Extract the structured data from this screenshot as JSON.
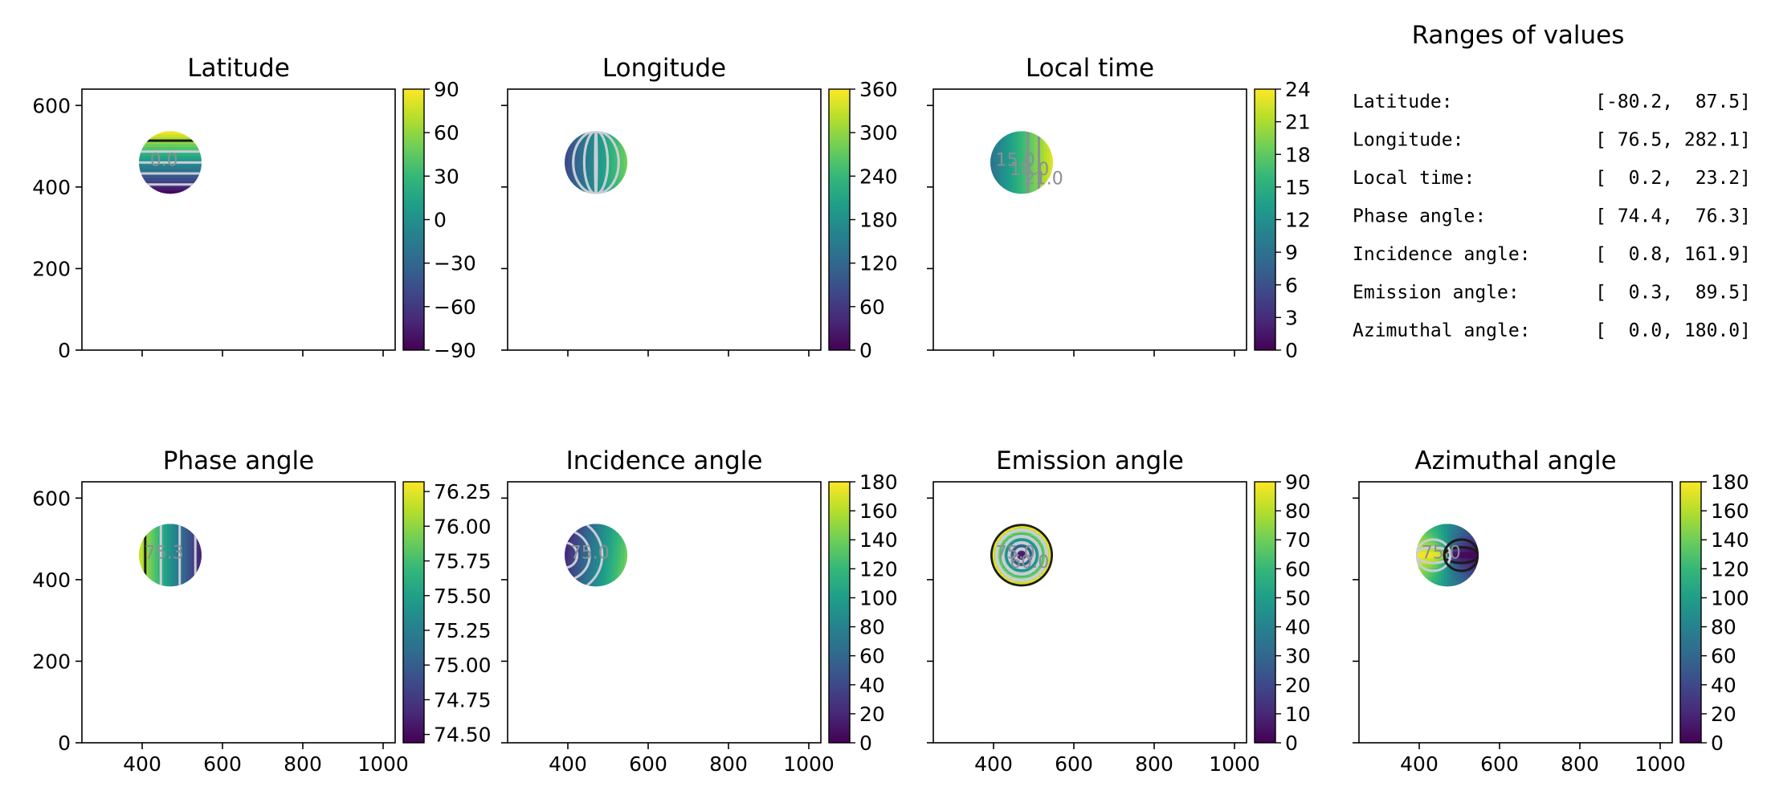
{
  "colormap": {
    "name": "viridis",
    "stops": [
      "#440154",
      "#482878",
      "#3e4989",
      "#31688e",
      "#26828e",
      "#1f9e89",
      "#35b779",
      "#6ece58",
      "#b5de2b",
      "#fde725"
    ]
  },
  "colors": {
    "contour_light": "#c8cdd6",
    "contour_gray": "#8a8f96",
    "contour_dark": "#1b1b1b",
    "axes": "#000000"
  },
  "chart_data": [
    {
      "type": "heatmap",
      "id": "latitude",
      "title": "Latitude",
      "xlim": [
        250,
        1030
      ],
      "ylim": [
        0,
        640
      ],
      "xticks": [
        400,
        600,
        800,
        1000
      ],
      "yticks": [
        0,
        200,
        400,
        600
      ],
      "show_xticklabels": false,
      "show_yticklabels": true,
      "disk": {
        "cx": 470,
        "cy": 460,
        "r": 78
      },
      "field": "latitude",
      "clim": [
        -90,
        90
      ],
      "colorbar_ticks": [
        "90",
        "60",
        "30",
        "0",
        "−30",
        "−60",
        "−90"
      ],
      "colorbar_values": [
        90,
        60,
        30,
        0,
        -30,
        -60,
        -90
      ],
      "contour_labels": [
        "0.0"
      ]
    },
    {
      "type": "heatmap",
      "id": "longitude",
      "title": "Longitude",
      "xlim": [
        250,
        1030
      ],
      "ylim": [
        0,
        640
      ],
      "xticks": [
        400,
        600,
        800,
        1000
      ],
      "yticks": [
        0,
        200,
        400,
        600
      ],
      "show_xticklabels": false,
      "show_yticklabels": false,
      "disk": {
        "cx": 470,
        "cy": 460,
        "r": 78
      },
      "field": "longitude",
      "clim": [
        0,
        360
      ],
      "colorbar_ticks": [
        "360",
        "300",
        "240",
        "180",
        "120",
        "60",
        "0"
      ],
      "colorbar_values": [
        360,
        300,
        240,
        180,
        120,
        60,
        0
      ],
      "contour_labels": []
    },
    {
      "type": "heatmap",
      "id": "local-time",
      "title": "Local time",
      "xlim": [
        250,
        1030
      ],
      "ylim": [
        0,
        640
      ],
      "xticks": [
        400,
        600,
        800,
        1000
      ],
      "yticks": [
        0,
        200,
        400,
        600
      ],
      "show_xticklabels": false,
      "show_yticklabels": false,
      "disk": {
        "cx": 470,
        "cy": 460,
        "r": 78
      },
      "field": "localtime",
      "clim": [
        0,
        24
      ],
      "colorbar_ticks": [
        "24",
        "21",
        "18",
        "15",
        "12",
        "9",
        "6",
        "3",
        "0"
      ],
      "colorbar_values": [
        24,
        21,
        18,
        15,
        12,
        9,
        6,
        3,
        0
      ],
      "contour_labels": [
        "15.0",
        "18.0",
        "21.0"
      ]
    },
    {
      "type": "heatmap",
      "id": "phase-angle",
      "title": "Phase angle",
      "xlim": [
        250,
        1030
      ],
      "ylim": [
        0,
        640
      ],
      "xticks": [
        400,
        600,
        800,
        1000
      ],
      "yticks": [
        0,
        200,
        400,
        600
      ],
      "show_xticklabels": true,
      "show_yticklabels": true,
      "disk": {
        "cx": 470,
        "cy": 460,
        "r": 78
      },
      "field": "phase",
      "clim": [
        74.44,
        76.32
      ],
      "colorbar_ticks": [
        "76.25",
        "76.00",
        "75.75",
        "75.50",
        "75.25",
        "75.00",
        "74.75",
        "74.50"
      ],
      "colorbar_values": [
        76.25,
        76.0,
        75.75,
        75.5,
        75.25,
        75.0,
        74.75,
        74.5
      ],
      "contour_labels": [
        "75.3"
      ]
    },
    {
      "type": "heatmap",
      "id": "incidence-angle",
      "title": "Incidence angle",
      "xlim": [
        250,
        1030
      ],
      "ylim": [
        0,
        640
      ],
      "xticks": [
        400,
        600,
        800,
        1000
      ],
      "yticks": [
        0,
        200,
        400,
        600
      ],
      "show_xticklabels": true,
      "show_yticklabels": false,
      "disk": {
        "cx": 470,
        "cy": 460,
        "r": 78
      },
      "field": "incidence",
      "clim": [
        0,
        180
      ],
      "colorbar_ticks": [
        "180",
        "160",
        "140",
        "120",
        "100",
        "80",
        "60",
        "40",
        "20",
        "0"
      ],
      "colorbar_values": [
        180,
        160,
        140,
        120,
        100,
        80,
        60,
        40,
        20,
        0
      ],
      "contour_labels": [
        "75.0"
      ]
    },
    {
      "type": "heatmap",
      "id": "emission-angle",
      "title": "Emission angle",
      "xlim": [
        250,
        1030
      ],
      "ylim": [
        0,
        640
      ],
      "xticks": [
        400,
        600,
        800,
        1000
      ],
      "yticks": [
        0,
        200,
        400,
        600
      ],
      "show_xticklabels": true,
      "show_yticklabels": false,
      "disk": {
        "cx": 470,
        "cy": 460,
        "r": 78
      },
      "field": "emission",
      "clim": [
        0,
        90
      ],
      "colorbar_ticks": [
        "90",
        "80",
        "70",
        "60",
        "50",
        "40",
        "30",
        "20",
        "10",
        "0"
      ],
      "colorbar_values": [
        90,
        80,
        70,
        60,
        50,
        40,
        30,
        20,
        10,
        0
      ],
      "contour_labels": [
        "75.0",
        "60.0"
      ]
    },
    {
      "type": "heatmap",
      "id": "azimuthal-angle",
      "title": "Azimuthal angle",
      "xlim": [
        250,
        1030
      ],
      "ylim": [
        0,
        640
      ],
      "xticks": [
        400,
        600,
        800,
        1000
      ],
      "yticks": [
        0,
        200,
        400,
        600
      ],
      "show_xticklabels": true,
      "show_yticklabels": false,
      "disk": {
        "cx": 470,
        "cy": 460,
        "r": 78
      },
      "field": "azimuth",
      "clim": [
        0,
        180
      ],
      "colorbar_ticks": [
        "180",
        "160",
        "140",
        "120",
        "100",
        "80",
        "60",
        "40",
        "20",
        "0"
      ],
      "colorbar_values": [
        180,
        160,
        140,
        120,
        100,
        80,
        60,
        40,
        20,
        0
      ],
      "contour_labels": [
        "75.0"
      ]
    }
  ],
  "ranges_table": {
    "title": "Ranges of values",
    "rows": [
      {
        "label": "Latitude:",
        "range": "[-80.2,  87.5]"
      },
      {
        "label": "Longitude:",
        "range": "[ 76.5, 282.1]"
      },
      {
        "label": "Local time:",
        "range": "[  0.2,  23.2]"
      },
      {
        "label": "Phase angle:",
        "range": "[ 74.4,  76.3]"
      },
      {
        "label": "Incidence angle:",
        "range": "[  0.8, 161.9]"
      },
      {
        "label": "Emission angle:",
        "range": "[  0.3,  89.5]"
      },
      {
        "label": "Azimuthal angle:",
        "range": "[  0.0, 180.0]"
      }
    ]
  }
}
